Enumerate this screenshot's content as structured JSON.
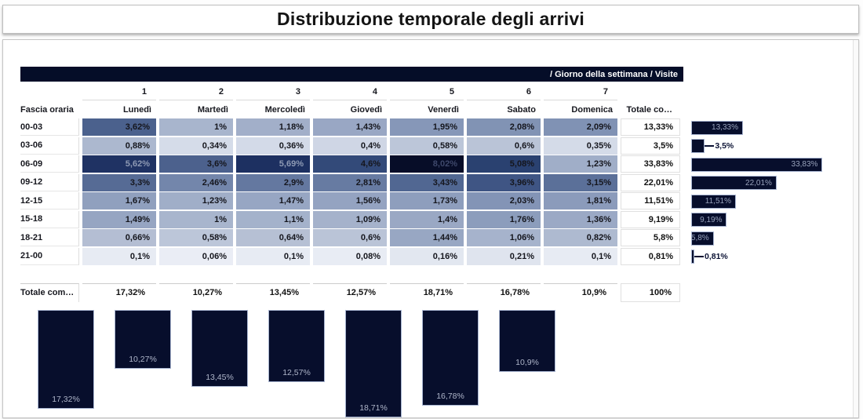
{
  "page_title": "Distribuzione temporale degli arrivi",
  "pivot_header": "/ Giorno della settimana / Visite",
  "row_axis_label": "Fascia oraria",
  "chart_data": {
    "type": "heatmap",
    "title": "Distribuzione temporale degli arrivi",
    "legend_breadcrumb": "/ Giorno della settimana / Visite",
    "row_axis_label": "Fascia oraria",
    "column_numbers": [
      "1",
      "2",
      "3",
      "4",
      "5",
      "6",
      "7"
    ],
    "columns": [
      "Lunedì",
      "Martedì",
      "Mercoledì",
      "Giovedì",
      "Venerdì",
      "Sabato",
      "Domenica"
    ],
    "rows": [
      "00-03",
      "03-06",
      "06-09",
      "09-12",
      "12-15",
      "15-18",
      "18-21",
      "21-00"
    ],
    "values": [
      [
        3.62,
        1.0,
        1.18,
        1.43,
        1.95,
        2.08,
        2.09
      ],
      [
        0.88,
        0.34,
        0.36,
        0.4,
        0.58,
        0.6,
        0.35
      ],
      [
        5.62,
        3.6,
        5.69,
        4.6,
        8.02,
        5.08,
        1.23
      ],
      [
        3.3,
        2.46,
        2.9,
        2.81,
        3.43,
        3.96,
        3.15
      ],
      [
        1.67,
        1.23,
        1.47,
        1.56,
        1.73,
        2.03,
        1.81
      ],
      [
        1.49,
        1.0,
        1.1,
        1.09,
        1.4,
        1.76,
        1.36
      ],
      [
        0.66,
        0.58,
        0.64,
        0.6,
        1.44,
        1.06,
        0.82
      ],
      [
        0.1,
        0.06,
        0.1,
        0.08,
        0.16,
        0.21,
        0.1
      ]
    ],
    "cell_labels": [
      [
        "3,62%",
        "1%",
        "1,18%",
        "1,43%",
        "1,95%",
        "2,08%",
        "2,09%"
      ],
      [
        "0,88%",
        "0,34%",
        "0,36%",
        "0,4%",
        "0,58%",
        "0,6%",
        "0,35%"
      ],
      [
        "5,62%",
        "3,6%",
        "5,69%",
        "4,6%",
        "8,02%",
        "5,08%",
        "1,23%"
      ],
      [
        "3,3%",
        "2,46%",
        "2,9%",
        "2,81%",
        "3,43%",
        "3,96%",
        "3,15%"
      ],
      [
        "1,67%",
        "1,23%",
        "1,47%",
        "1,56%",
        "1,73%",
        "2,03%",
        "1,81%"
      ],
      [
        "1,49%",
        "1%",
        "1,1%",
        "1,09%",
        "1,4%",
        "1,76%",
        "1,36%"
      ],
      [
        "0,66%",
        "0,58%",
        "0,64%",
        "0,6%",
        "1,44%",
        "1,06%",
        "0,82%"
      ],
      [
        "0,1%",
        "0,06%",
        "0,1%",
        "0,08%",
        "0,16%",
        "0,21%",
        "0,1%"
      ]
    ],
    "row_totals": {
      "header": "Totale co…",
      "values": [
        13.33,
        3.5,
        33.83,
        22.01,
        11.51,
        9.19,
        5.8,
        0.81
      ],
      "labels": [
        "13,33%",
        "3,5%",
        "33,83%",
        "22,01%",
        "11,51%",
        "9,19%",
        "5,8%",
        "0,81%"
      ]
    },
    "column_totals": {
      "header": "Totale com…",
      "values": [
        17.32,
        10.27,
        13.45,
        12.57,
        18.71,
        16.78,
        10.9
      ],
      "labels": [
        "17,32%",
        "10,27%",
        "13,45%",
        "12,57%",
        "18,71%",
        "16,78%",
        "10,9%"
      ]
    },
    "grand_total": "100%",
    "colors": {
      "accent_dark": "#050d28",
      "bar_fill": "#070e2c",
      "bar_border": "#a9b6d2",
      "heat_min": "#eef1f7",
      "heat_max": "#070d28"
    },
    "layout": {
      "legend_position": "header-right",
      "row_bars": "right",
      "column_bars": "bottom",
      "grid": false
    }
  }
}
